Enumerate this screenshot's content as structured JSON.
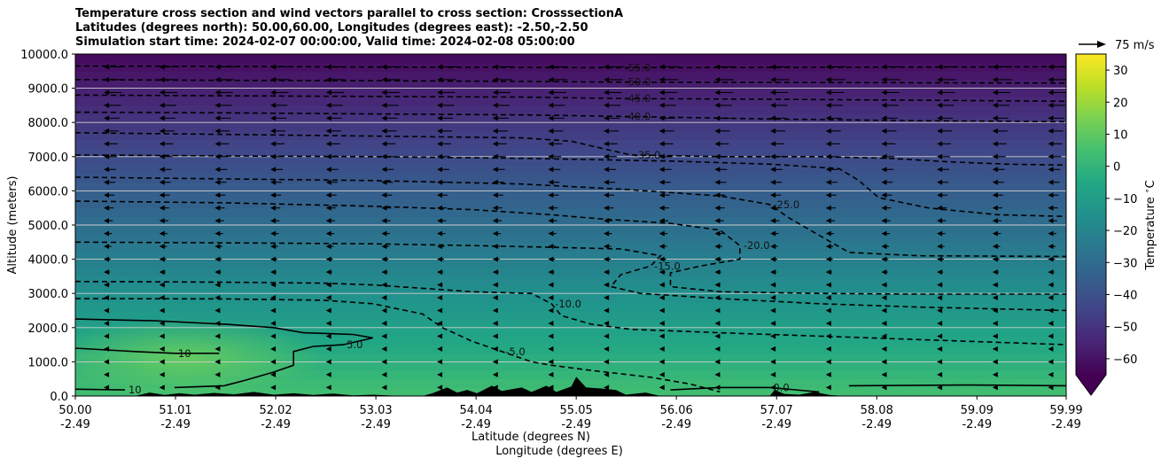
{
  "titles": {
    "line1": "Temperature cross section and wind vectors parallel to cross section: CrosssectionA",
    "line2": "Latitudes (degrees north): 50.00,60.00, Longitudes (degrees east): -2.50,-2.50",
    "line3": "Simulation start time: 2024-02-07 00:00:00, Valid time: 2024-02-08 05:00:00"
  },
  "quiver_key": {
    "label": "75 m/s"
  },
  "colorbar": {
    "label": "Temperature $^\\circ$C"
  },
  "chart_data": {
    "type": "heatmap",
    "title": "Temperature cross section and wind vectors parallel to cross section: CrosssectionA",
    "ylabel": "Altitude (meters)",
    "xlabel": [
      "Latitude (degrees N)",
      "Longitude (degrees E)"
    ],
    "ylim": [
      0,
      10000
    ],
    "yticks": [
      "0.0",
      "1000.0",
      "2000.0",
      "3000.0",
      "4000.0",
      "5000.0",
      "6000.0",
      "7000.0",
      "8000.0",
      "9000.0",
      "10000.0"
    ],
    "xticks": [
      {
        "lat": "50.00",
        "lon": "-2.49"
      },
      {
        "lat": "51.01",
        "lon": "-2.49"
      },
      {
        "lat": "52.02",
        "lon": "-2.49"
      },
      {
        "lat": "53.03",
        "lon": "-2.49"
      },
      {
        "lat": "54.04",
        "lon": "-2.49"
      },
      {
        "lat": "55.05",
        "lon": "-2.49"
      },
      {
        "lat": "56.06",
        "lon": "-2.49"
      },
      {
        "lat": "57.07",
        "lon": "-2.49"
      },
      {
        "lat": "58.08",
        "lon": "-2.49"
      },
      {
        "lat": "59.09",
        "lon": "-2.49"
      },
      {
        "lat": "59.99",
        "lon": "-2.49"
      }
    ],
    "colorbar_ticks": [
      "30",
      "20",
      "10",
      "0",
      "−10",
      "−20",
      "−30",
      "−40",
      "−50",
      "−60"
    ],
    "colorbar_range": [
      -65,
      35
    ],
    "grid": "horizontal",
    "colormap": "viridis",
    "contours": [
      {
        "level": -55,
        "label": "-55.0",
        "points": [
          [
            50.0,
            9650
          ],
          [
            51.5,
            9640
          ],
          [
            53.0,
            9620
          ],
          [
            54.5,
            9610
          ],
          [
            55.5,
            9600
          ],
          [
            57.0,
            9610
          ],
          [
            58.5,
            9620
          ],
          [
            60.0,
            9630
          ]
        ]
      },
      {
        "level": -50,
        "label": "-50.0",
        "points": [
          [
            50.0,
            9250
          ],
          [
            51.5,
            9230
          ],
          [
            53.0,
            9220
          ],
          [
            54.5,
            9200
          ],
          [
            55.5,
            9180
          ],
          [
            57.0,
            9170
          ],
          [
            58.5,
            9160
          ],
          [
            60.0,
            9150
          ]
        ]
      },
      {
        "level": -45,
        "label": "-45.0",
        "points": [
          [
            50.0,
            8800
          ],
          [
            51.5,
            8780
          ],
          [
            53.0,
            8760
          ],
          [
            54.5,
            8740
          ],
          [
            55.5,
            8700
          ],
          [
            57.0,
            8680
          ],
          [
            58.5,
            8650
          ],
          [
            60.0,
            8620
          ]
        ]
      },
      {
        "level": -40,
        "label": "-40.0",
        "points": [
          [
            50.0,
            8300
          ],
          [
            51.5,
            8280
          ],
          [
            53.0,
            8250
          ],
          [
            54.5,
            8220
          ],
          [
            55.5,
            8180
          ],
          [
            57.0,
            8100
          ],
          [
            58.5,
            8050
          ],
          [
            60.0,
            8020
          ]
        ]
      },
      {
        "level": -35,
        "label": "-35.0",
        "points": [
          [
            50.0,
            7700
          ],
          [
            51.5,
            7650
          ],
          [
            53.0,
            7600
          ],
          [
            54.5,
            7550
          ],
          [
            55.0,
            7450
          ],
          [
            55.3,
            7250
          ],
          [
            55.6,
            7050
          ],
          [
            56.5,
            7000
          ],
          [
            57.5,
            7000
          ],
          [
            58.2,
            6950
          ],
          [
            58.8,
            6850
          ],
          [
            59.4,
            6780
          ],
          [
            60.0,
            6750
          ]
        ]
      },
      {
        "level": -30,
        "label": "",
        "points": [
          [
            50.0,
            7050
          ],
          [
            51.5,
            7020
          ],
          [
            53.0,
            7000
          ],
          [
            54.5,
            6950
          ],
          [
            56.0,
            6870
          ],
          [
            57.0,
            6780
          ],
          [
            57.7,
            6650
          ],
          [
            57.9,
            6300
          ],
          [
            58.1,
            5800
          ],
          [
            58.6,
            5500
          ],
          [
            59.3,
            5300
          ],
          [
            60.0,
            5250
          ]
        ]
      },
      {
        "level": -25,
        "label": "-25.0",
        "points": [
          [
            50.0,
            6400
          ],
          [
            51.5,
            6350
          ],
          [
            53.0,
            6300
          ],
          [
            54.5,
            6200
          ],
          [
            55.5,
            6050
          ],
          [
            56.5,
            5850
          ],
          [
            57.0,
            5600
          ],
          [
            57.2,
            5200
          ],
          [
            57.5,
            4700
          ],
          [
            57.8,
            4200
          ],
          [
            58.5,
            4100
          ],
          [
            60.0,
            4080
          ]
        ]
      },
      {
        "level": -20,
        "label": "-20.0",
        "points": [
          [
            50.0,
            5700
          ],
          [
            51.5,
            5650
          ],
          [
            53.0,
            5550
          ],
          [
            54.0,
            5450
          ],
          [
            54.8,
            5300
          ],
          [
            55.3,
            5180
          ],
          [
            56.0,
            5050
          ],
          [
            56.5,
            4850
          ],
          [
            56.7,
            4400
          ],
          [
            56.7,
            4000
          ],
          [
            56.3,
            3800
          ],
          [
            56.0,
            3600
          ],
          [
            56.0,
            3200
          ],
          [
            56.5,
            3050
          ],
          [
            57.5,
            3000
          ],
          [
            58.5,
            2980
          ],
          [
            60.0,
            2980
          ]
        ]
      },
      {
        "level": -15,
        "label": "-15.0",
        "points": [
          [
            50.0,
            4500
          ],
          [
            51.5,
            4480
          ],
          [
            53.0,
            4450
          ],
          [
            54.0,
            4400
          ],
          [
            54.8,
            4350
          ],
          [
            55.5,
            4300
          ],
          [
            55.9,
            4100
          ],
          [
            55.8,
            3800
          ],
          [
            55.5,
            3550
          ],
          [
            55.4,
            3200
          ],
          [
            55.7,
            3000
          ],
          [
            56.5,
            2850
          ],
          [
            57.5,
            2700
          ],
          [
            58.5,
            2600
          ],
          [
            60.0,
            2500
          ]
        ]
      },
      {
        "level": -10,
        "label": "-10.0",
        "points": [
          [
            50.0,
            3350
          ],
          [
            51.5,
            3330
          ],
          [
            52.5,
            3300
          ],
          [
            53.0,
            3250
          ],
          [
            53.5,
            3150
          ],
          [
            54.0,
            3050
          ],
          [
            54.6,
            3000
          ],
          [
            54.8,
            2700
          ],
          [
            54.9,
            2350
          ],
          [
            55.2,
            2100
          ],
          [
            55.6,
            1950
          ],
          [
            56.5,
            1850
          ],
          [
            57.5,
            1750
          ],
          [
            58.5,
            1650
          ],
          [
            60.0,
            1500
          ]
        ]
      },
      {
        "level": -5,
        "label": "-5.0",
        "points": [
          [
            50.0,
            2850
          ],
          [
            51.5,
            2840
          ],
          [
            52.5,
            2800
          ],
          [
            53.0,
            2700
          ],
          [
            53.5,
            2400
          ],
          [
            53.7,
            2000
          ],
          [
            54.0,
            1600
          ],
          [
            54.3,
            1300
          ],
          [
            54.6,
            1000
          ],
          [
            54.8,
            900
          ],
          [
            55.2,
            750
          ],
          [
            55.8,
            550
          ],
          [
            56.2,
            350
          ],
          [
            56.5,
            120
          ]
        ]
      }
    ],
    "solid_contours": [
      {
        "level": 5,
        "label": "5.0",
        "points": [
          [
            50.0,
            2250
          ],
          [
            50.8,
            2200
          ],
          [
            51.5,
            2100
          ],
          [
            52.0,
            2000
          ],
          [
            52.3,
            1850
          ],
          [
            52.8,
            1800
          ],
          [
            53.0,
            1700
          ],
          [
            52.7,
            1500
          ],
          [
            52.4,
            1450
          ],
          [
            52.2,
            1300
          ],
          [
            52.2,
            900
          ],
          [
            52.0,
            700
          ],
          [
            51.7,
            450
          ],
          [
            51.5,
            300
          ],
          [
            51.0,
            250
          ]
        ]
      },
      {
        "level": 10,
        "label": "10",
        "points": [
          [
            50.0,
            1400
          ],
          [
            50.6,
            1300
          ],
          [
            51.0,
            1250
          ],
          [
            51.45,
            1250
          ]
        ]
      },
      {
        "level": 10,
        "label": "10",
        "points": [
          [
            50.0,
            200
          ],
          [
            50.5,
            180
          ]
        ]
      },
      {
        "level": 0,
        "label": "0.0",
        "points": [
          [
            56.0,
            180
          ],
          [
            56.5,
            250
          ],
          [
            57.0,
            250
          ],
          [
            57.5,
            120
          ]
        ]
      },
      {
        "level": 0,
        "label": "",
        "points": [
          [
            57.8,
            300
          ],
          [
            59.0,
            320
          ],
          [
            60.0,
            300
          ]
        ]
      }
    ],
    "terrain": [
      [
        50.0,
        0
      ],
      [
        50.6,
        0
      ],
      [
        50.75,
        100
      ],
      [
        50.9,
        30
      ],
      [
        51.05,
        80
      ],
      [
        51.2,
        40
      ],
      [
        51.4,
        90
      ],
      [
        51.6,
        50
      ],
      [
        51.8,
        120
      ],
      [
        52.0,
        40
      ],
      [
        52.2,
        80
      ],
      [
        52.4,
        30
      ],
      [
        52.6,
        70
      ],
      [
        52.8,
        20
      ],
      [
        53.0,
        40
      ],
      [
        53.3,
        0
      ],
      [
        53.5,
        0
      ],
      [
        53.6,
        80
      ],
      [
        53.75,
        250
      ],
      [
        53.85,
        100
      ],
      [
        53.95,
        180
      ],
      [
        54.05,
        80
      ],
      [
        54.2,
        300
      ],
      [
        54.3,
        150
      ],
      [
        54.5,
        250
      ],
      [
        54.6,
        120
      ],
      [
        54.75,
        300
      ],
      [
        54.85,
        120
      ],
      [
        55.0,
        280
      ],
      [
        55.05,
        560
      ],
      [
        55.15,
        250
      ],
      [
        55.3,
        220
      ],
      [
        55.45,
        180
      ],
      [
        55.55,
        40
      ],
      [
        55.75,
        100
      ],
      [
        55.9,
        0
      ],
      [
        57.0,
        0
      ],
      [
        57.05,
        180
      ],
      [
        57.15,
        60
      ],
      [
        57.3,
        40
      ],
      [
        57.45,
        120
      ],
      [
        57.6,
        30
      ],
      [
        57.75,
        0
      ],
      [
        60.0,
        0
      ]
    ]
  }
}
